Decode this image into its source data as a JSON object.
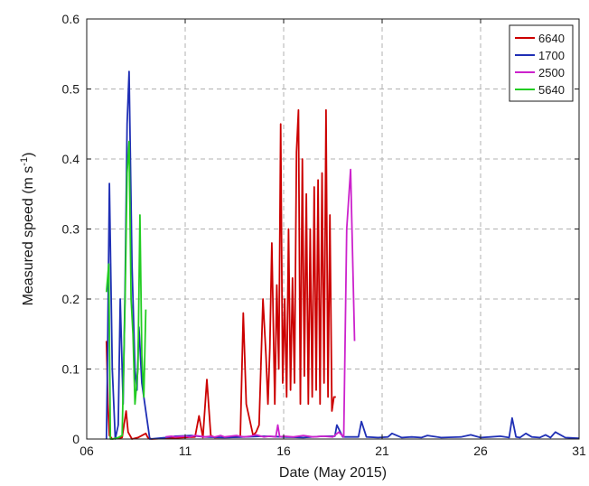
{
  "chart_data": {
    "type": "line",
    "title": "",
    "xlabel": "Date (May 2015)",
    "ylabel_main": "Measured speed (m s",
    "ylabel_sup": "-1",
    "ylabel_tail": ")",
    "xlim": [
      6,
      31
    ],
    "ylim": [
      0,
      0.6
    ],
    "xticks": [
      6,
      11,
      16,
      21,
      26,
      31
    ],
    "xtick_labels": [
      "06",
      "11",
      "16",
      "21",
      "26",
      "31"
    ],
    "yticks": [
      0,
      0.1,
      0.2,
      0.3,
      0.4,
      0.5,
      0.6
    ],
    "ytick_labels": [
      "0",
      "0.1",
      "0.2",
      "0.3",
      "0.4",
      "0.5",
      "0.6"
    ],
    "grid": true,
    "legend_position": "top-right",
    "series": [
      {
        "name": "6640",
        "color": "#cc0000",
        "x": [
          7.0,
          7.08,
          7.15,
          7.3,
          7.8,
          8.0,
          8.1,
          8.3,
          8.6,
          9.0,
          9.1,
          9.3,
          11.5,
          11.7,
          11.9,
          12.1,
          12.3,
          12.5,
          13.8,
          13.95,
          14.1,
          14.35,
          14.45,
          14.6,
          14.75,
          14.95,
          15.1,
          15.2,
          15.3,
          15.4,
          15.55,
          15.65,
          15.75,
          15.85,
          15.95,
          16.05,
          16.15,
          16.25,
          16.35,
          16.45,
          16.55,
          16.65,
          16.75,
          16.85,
          16.95,
          17.05,
          17.15,
          17.25,
          17.35,
          17.45,
          17.55,
          17.65,
          17.75,
          17.85,
          17.95,
          18.05,
          18.15,
          18.25,
          18.35,
          18.45,
          18.55,
          18.6,
          18.65
        ],
        "y": [
          0.14,
          0.05,
          0.005,
          0.0,
          0.002,
          0.04,
          0.01,
          0.0,
          0.002,
          0.008,
          0.002,
          0.0,
          0.003,
          0.033,
          0.002,
          0.085,
          0.005,
          0.002,
          0.003,
          0.18,
          0.05,
          0.018,
          0.005,
          0.01,
          0.02,
          0.2,
          0.12,
          0.05,
          0.13,
          0.28,
          0.05,
          0.22,
          0.1,
          0.45,
          0.08,
          0.2,
          0.06,
          0.3,
          0.07,
          0.23,
          0.08,
          0.41,
          0.47,
          0.05,
          0.4,
          0.09,
          0.35,
          0.05,
          0.3,
          0.06,
          0.36,
          0.07,
          0.37,
          0.05,
          0.38,
          0.08,
          0.47,
          0.06,
          0.32,
          0.04,
          0.06,
          0.06,
          0.06
        ]
      },
      {
        "name": "1700",
        "color": "#1f2fb5",
        "x": [
          7.0,
          7.05,
          7.15,
          7.3,
          7.45,
          7.6,
          7.7,
          7.85,
          7.95,
          8.05,
          8.15,
          8.3,
          8.45,
          8.55,
          8.65,
          8.8,
          9.2,
          10.0,
          10.5,
          11.3,
          12.0,
          13.0,
          14.0,
          15.0,
          16.0,
          17.0,
          18.0,
          18.6,
          18.7,
          19.0,
          19.8,
          19.95,
          20.2,
          20.8,
          21.3,
          21.5,
          22.0,
          22.5,
          23.0,
          23.3,
          24.0,
          25.0,
          25.5,
          26.0,
          26.5,
          27.0,
          27.45,
          27.6,
          27.8,
          28.0,
          28.3,
          28.6,
          29.0,
          29.3,
          29.55,
          29.8,
          30.3,
          31.0
        ],
        "y": [
          0.0,
          0.1,
          0.365,
          0.1,
          0.0,
          0.02,
          0.2,
          0.05,
          0.22,
          0.45,
          0.525,
          0.25,
          0.1,
          0.07,
          0.16,
          0.08,
          0.0,
          0.002,
          0.004,
          0.005,
          0.003,
          0.002,
          0.003,
          0.004,
          0.003,
          0.002,
          0.004,
          0.004,
          0.02,
          0.003,
          0.003,
          0.025,
          0.003,
          0.002,
          0.003,
          0.008,
          0.002,
          0.003,
          0.002,
          0.005,
          0.002,
          0.003,
          0.006,
          0.002,
          0.003,
          0.004,
          0.002,
          0.03,
          0.003,
          0.002,
          0.008,
          0.003,
          0.002,
          0.006,
          0.002,
          0.01,
          0.002,
          0.001
        ]
      },
      {
        "name": "2500",
        "color": "#cc22cc",
        "x": [
          10.0,
          10.3,
          10.5,
          11.0,
          11.2,
          11.5,
          12.0,
          12.3,
          12.5,
          12.8,
          13.0,
          13.3,
          13.6,
          14.0,
          14.3,
          14.6,
          15.0,
          15.3,
          15.6,
          15.7,
          15.8,
          16.0,
          16.5,
          17.0,
          17.5,
          18.0,
          18.5,
          18.8,
          19.05,
          19.2,
          19.4,
          19.6
        ],
        "y": [
          0.003,
          0.004,
          0.003,
          0.004,
          0.003,
          0.005,
          0.003,
          0.004,
          0.003,
          0.005,
          0.003,
          0.004,
          0.005,
          0.003,
          0.004,
          0.006,
          0.003,
          0.004,
          0.003,
          0.02,
          0.003,
          0.004,
          0.003,
          0.005,
          0.003,
          0.004,
          0.003,
          0.01,
          0.003,
          0.3,
          0.385,
          0.14
        ]
      },
      {
        "name": "5640",
        "color": "#22cc22",
        "x": [
          7.0,
          7.12,
          7.2,
          7.3,
          7.6,
          7.8,
          7.95,
          8.05,
          8.15,
          8.25,
          8.35,
          8.45,
          8.6,
          8.7,
          8.8,
          8.9,
          9.0
        ],
        "y": [
          0.21,
          0.25,
          0.0,
          0.0,
          0.002,
          0.005,
          0.2,
          0.38,
          0.425,
          0.2,
          0.15,
          0.05,
          0.1,
          0.32,
          0.12,
          0.06,
          0.185
        ]
      }
    ]
  }
}
